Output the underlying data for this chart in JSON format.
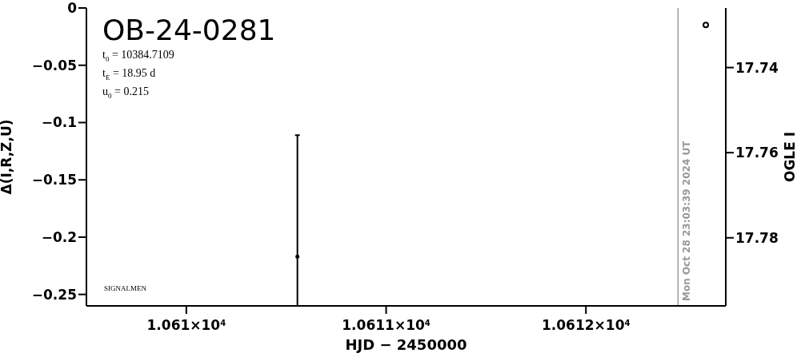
{
  "chart_data": {
    "type": "scatter",
    "title": "OB-24-0281",
    "annotations": [
      "t$_{0}$ = 10384.7109",
      "t$_{E}$ = 18.95 d",
      "u$_{0}$ = 0.215",
      "SIGNALMEN",
      "Mon Oct 28 23:03:39 2024 UT"
    ],
    "xlabel": "HJD − 2450000",
    "ylabel": "Δ(I,R,Z,U)",
    "y2label": "OGLE I",
    "xlim": [
      10609.5,
      10612.7
    ],
    "xticks": [
      {
        "value": 10610,
        "label": "1.061×10$^{4}$"
      },
      {
        "value": 10611,
        "label": "1.0611×10$^{4}$"
      },
      {
        "value": 10612,
        "label": "1.0612×10$^{4}$"
      }
    ],
    "ylim": [
      -0.26,
      0
    ],
    "yticks": [
      0,
      {
        "value": -0.05,
        "label": "−0.05"
      },
      {
        "value": -0.1,
        "label": "−0.1"
      },
      {
        "value": -0.15,
        "label": "−0.15"
      },
      {
        "value": -0.2,
        "label": "−0.2"
      },
      {
        "value": -0.25,
        "label": "−0.25"
      }
    ],
    "y2lim": [
      17.796,
      17.726
    ],
    "y2ticks": [
      17.74,
      17.76,
      17.78
    ],
    "series": [
      {
        "type": "scatter",
        "color": "#000000",
        "x": [
          10610.556
        ],
        "values": [
          -0.217
        ],
        "errors": [
          [
            -0.26,
            -0.111
          ]
        ]
      },
      {
        "type": "scatter",
        "axis": "y2",
        "color": "#000000",
        "x": [
          10612.6
        ],
        "values": [
          17.73
        ]
      }
    ],
    "ref_lines": [
      {
        "axis": "x",
        "value": 10612.461,
        "color": "#999999"
      }
    ],
    "marker": "circle",
    "grid": false,
    "legend": false
  }
}
